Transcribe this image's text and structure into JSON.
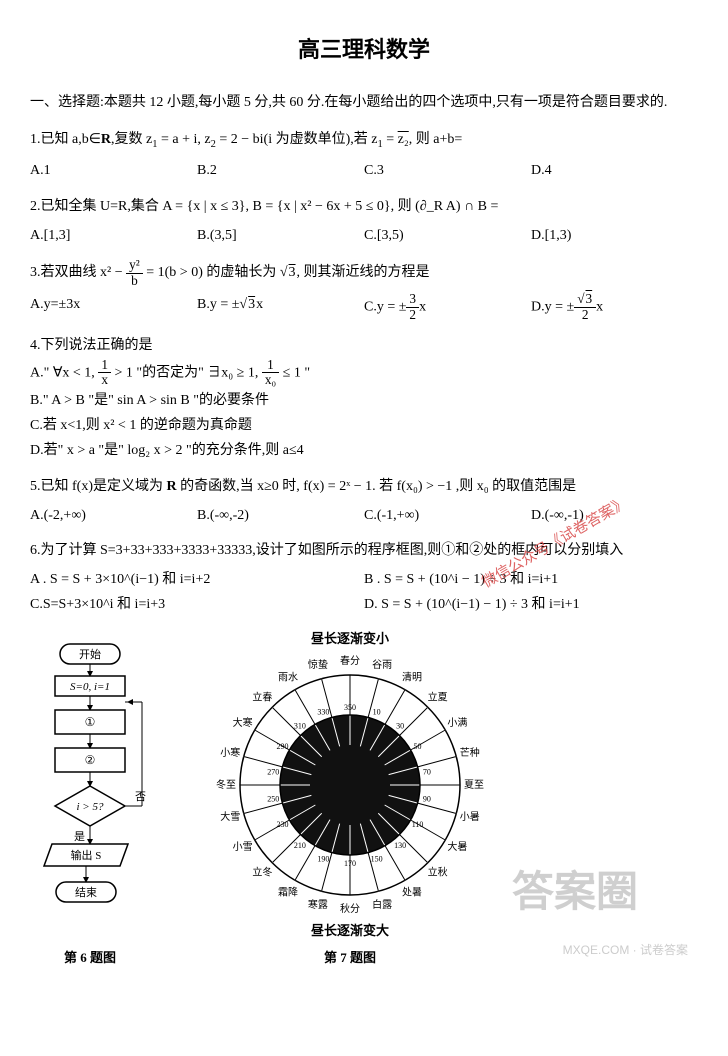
{
  "title": "高三理科数学",
  "intro": "一、选择题:本题共 12 小题,每小题 5 分,共 60 分.在每小题给出的四个选项中,只有一项是符合题目要求的.",
  "q1": {
    "stem_a": "1.已知 a,b∈",
    "stem_b": ",复数 z",
    "stem_c": " = a + i, z",
    "stem_d": " = 2 − bi(i 为虚数单位),若 z",
    "stem_e": " = ",
    "stem_f": ", 则 a+b=",
    "z2bar": "z₂",
    "A": "A.1",
    "B": "B.2",
    "C": "C.3",
    "D": "D.4"
  },
  "q2": {
    "stem": "2.已知全集 U=R,集合 A = {x | x ≤ 3}, B = {x | x² − 6x + 5 ≤ 0},  则 (∂_R A) ∩ B =",
    "A": "A.[1,3]",
    "B": "B.(3,5]",
    "C": "C.[3,5)",
    "D": "D.[1,3)"
  },
  "q3": {
    "stem_a": "3.若双曲线 x² − ",
    "stem_b": " = 1(b > 0) 的虚轴长为 ",
    "stem_c": ", 则其渐近线的方程是",
    "sqrt3": "3",
    "A": "A.y=±3x",
    "B_pre": "B.y = ±",
    "B_sqrt": "3",
    "B_post": "x",
    "C_pre": "C.y = ±",
    "C_num": "3",
    "C_den": "2",
    "C_post": "x",
    "D_pre": "D.y = ±",
    "D_sqrt": "3",
    "D_den": "2",
    "D_post": "x"
  },
  "q4": {
    "stem": "4.下列说法正确的是",
    "A_pre": "A.\" ∀x < 1, ",
    "A_num": "1",
    "A_den": "x",
    "A_mid": " > 1 \"的否定为\" ∃x₀ ≥ 1, ",
    "A_num2": "1",
    "A_den2": "x₀",
    "A_post": " ≤ 1 \"",
    "B": "B.\" A > B \"是\" sin A > sin B \"的必要条件",
    "C": "C.若 x<1,则 x² < 1 的逆命题为真命题",
    "D": "D.若\" x > a \"是\" log₂ x > 2 \"的充分条件,则 a≤4"
  },
  "q5": {
    "stem_a": "5.已知 f(x)是定义域为 ",
    "stem_b": " 的奇函数,当 x≥0 时, f(x) = 2ˣ − 1. 若 f(x₀) > −1 ,则 x₀ 的取值范围是",
    "A": "A.(-2,+∞)",
    "B": "B.(-∞,-2)",
    "C": "C.(-1,+∞)",
    "D": "D.(-∞,-1)"
  },
  "q6": {
    "stem": "6.为了计算 S=3+33+333+3333+33333,设计了如图所示的程序框图,则①和②处的框内可以分别填入",
    "A": "A .  S = S + 3×10^(i−1) 和 i=i+2",
    "B": "B . S = S + (10^i − 1) ÷ 3 和 i=i+1",
    "C": "C.S=S+3×10^i 和 i=i+3",
    "D": "D. S = S + (10^(i−1) − 1) ÷ 3 和 i=i+1"
  },
  "flowchart": {
    "start": "开始",
    "init": "S=0, i=1",
    "step1": "①",
    "step2": "②",
    "cond": "i > 5?",
    "yes": "是",
    "no": "否",
    "out": "输出 S",
    "end": "结束",
    "caption": "第 6 题图",
    "box_stroke": "#000000",
    "box_fill": "#ffffff",
    "line": "#000000",
    "font_size": 11
  },
  "solarterms": {
    "top_label": "昼长逐渐变小",
    "bottom_label": "昼长逐渐变大",
    "caption": "第 7 题图",
    "labels": [
      "春分",
      "谷雨",
      "清明",
      "立夏",
      "小满",
      "芒种",
      "夏至",
      "小暑",
      "大暑",
      "立秋",
      "处暑",
      "白露",
      "秋分",
      "寒露",
      "霜降",
      "立冬",
      "小雪",
      "大雪",
      "冬至",
      "小寒",
      "大寒",
      "立春",
      "雨水",
      "惊蛰"
    ],
    "marks": {
      "0": "春分",
      "90": "夏至",
      "180": "秋分",
      "270": "冬至"
    },
    "deg_labels": [
      "350",
      "10",
      "30",
      "50",
      "70",
      "90",
      "110",
      "130",
      "150",
      "170",
      "190",
      "210",
      "230",
      "250",
      "270",
      "290",
      "310",
      "330"
    ],
    "outer_r": 110,
    "inner_r": 40,
    "stroke": "#000000",
    "fill": "#ffffff",
    "font_size": 10
  },
  "watermarks": {
    "red1": "微信公众号《试卷答案》",
    "red2": "微信",
    "ans": "答案圈",
    "corner": "MXQE.COM · 试卷答案"
  },
  "colors": {
    "text": "#000000",
    "bg": "#ffffff",
    "red": "#d94a4a",
    "grey": "#cccccc"
  }
}
